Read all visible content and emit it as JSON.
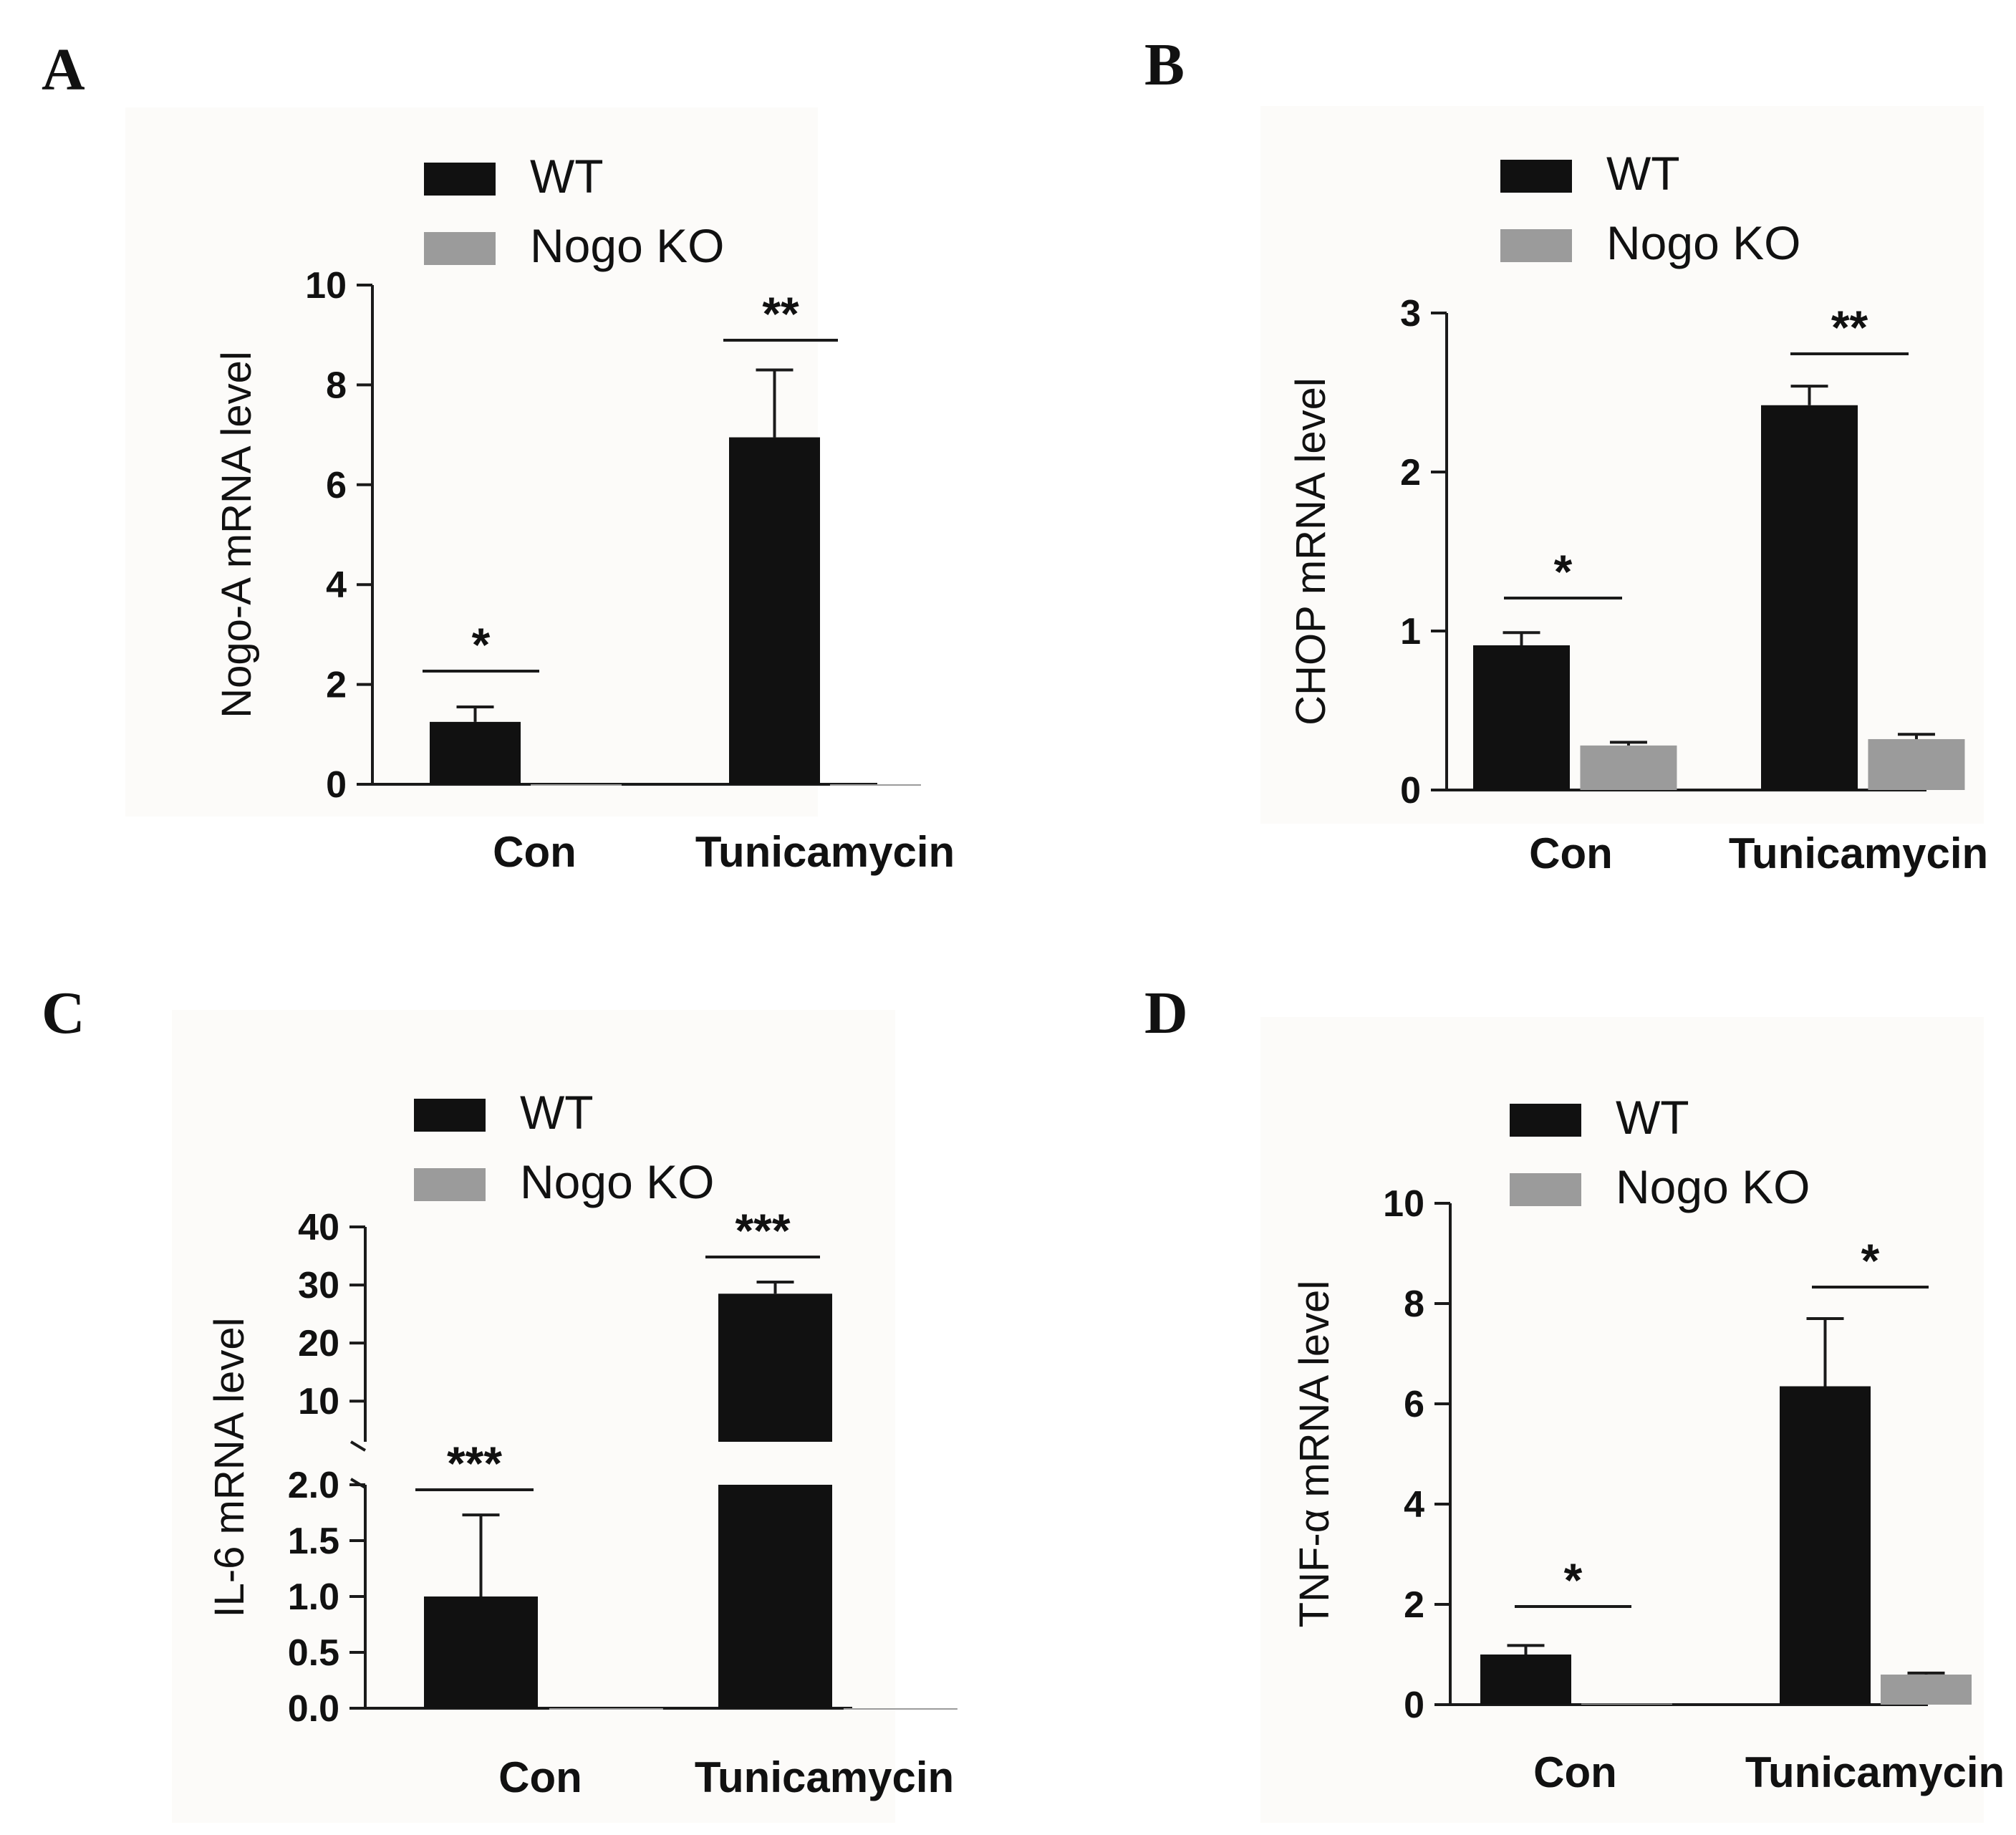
{
  "colors": {
    "wt": "#111111",
    "ko": "#9b9b9b",
    "panel_bg": "#fcfbf9"
  },
  "chart_data": [
    {
      "panel": "A",
      "type": "bar",
      "ylabel": "Nogo-A mRNA level",
      "categories": [
        "Con",
        "Tunicamycin"
      ],
      "ylim": [
        0,
        10
      ],
      "yticks": [
        "0",
        "2",
        "4",
        "6",
        "8",
        "10"
      ],
      "series": [
        {
          "name": "WT",
          "values": [
            1.25,
            6.95
          ],
          "errors": [
            0.3,
            1.35
          ]
        },
        {
          "name": "Nogo KO",
          "values": [
            0,
            0
          ],
          "errors": [
            0,
            0
          ]
        }
      ],
      "significance": [
        "*",
        "**"
      ]
    },
    {
      "panel": "B",
      "type": "bar",
      "ylabel": "CHOP mRNA level",
      "categories": [
        "Con",
        "Tunicamycin"
      ],
      "ylim": [
        0,
        3
      ],
      "yticks": [
        "0",
        "1",
        "2",
        "3"
      ],
      "series": [
        {
          "name": "WT",
          "values": [
            0.91,
            2.42
          ],
          "errors": [
            0.08,
            0.12
          ]
        },
        {
          "name": "Nogo KO",
          "values": [
            0.28,
            0.32
          ],
          "errors": [
            0.02,
            0.03
          ]
        }
      ],
      "significance": [
        "*",
        "**"
      ]
    },
    {
      "panel": "C",
      "type": "bar",
      "ylabel": "IL-6 mRNA level",
      "categories": [
        "Con",
        "Tunicamycin"
      ],
      "axis_break": {
        "lower_ylim": [
          0,
          2.0
        ],
        "upper_ylim": [
          3,
          40
        ]
      },
      "yticks_lower": [
        "0.0",
        "0.5",
        "1.0",
        "1.5",
        "2.0"
      ],
      "yticks_upper": [
        "10",
        "20",
        "30",
        "40"
      ],
      "series": [
        {
          "name": "WT",
          "values": [
            1.0,
            28.5
          ],
          "errors": [
            0.73,
            2.0
          ]
        },
        {
          "name": "Nogo KO",
          "values": [
            0,
            0
          ],
          "errors": [
            0,
            0
          ]
        }
      ],
      "significance": [
        "***",
        "***"
      ]
    },
    {
      "panel": "D",
      "type": "bar",
      "ylabel": "TNF-α mRNA level",
      "categories": [
        "Con",
        "Tunicamycin"
      ],
      "ylim": [
        0,
        10
      ],
      "yticks": [
        "0",
        "2",
        "4",
        "6",
        "8",
        "10"
      ],
      "series": [
        {
          "name": "WT",
          "values": [
            1.0,
            6.35
          ],
          "errors": [
            0.18,
            1.35
          ]
        },
        {
          "name": "Nogo KO",
          "values": [
            0.02,
            0.6
          ],
          "errors": [
            0,
            0.03
          ]
        }
      ],
      "significance": [
        "*",
        "*"
      ]
    }
  ]
}
